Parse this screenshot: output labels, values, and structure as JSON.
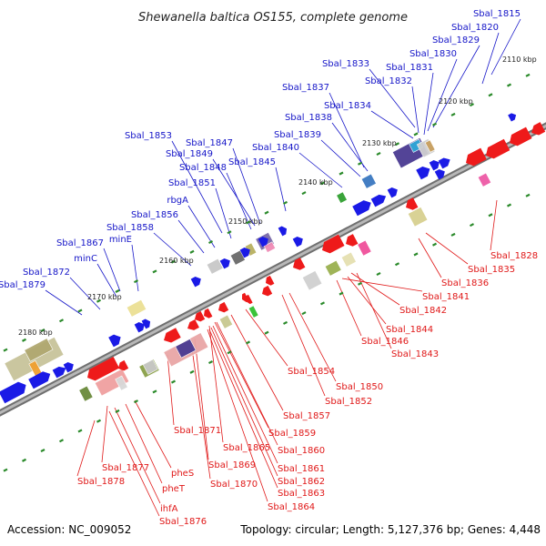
{
  "title": "Shewanella baltica OS155, complete genome",
  "footer": {
    "accession": "Accession: NC_009052",
    "summary": "Topology: circular; Length: 5,127,376 bp; Genes: 4,448"
  },
  "colors": {
    "forward_label": "#1515c8",
    "reverse_label": "#e01818",
    "backbone": "#8c8c8c",
    "ruler_dot": "#2a8a2a"
  },
  "ticks": [
    {
      "label": "2110 kbp",
      "kbp": 2110
    },
    {
      "label": "2120 kbp",
      "kbp": 2120
    },
    {
      "label": "2130 kbp",
      "kbp": 2130
    },
    {
      "label": "2140 kbp",
      "kbp": 2140
    },
    {
      "label": "2150 kbp",
      "kbp": 2150
    },
    {
      "label": "2160 kbp",
      "kbp": 2160
    },
    {
      "label": "2170 kbp",
      "kbp": 2170
    },
    {
      "label": "2180 kbp",
      "kbp": 2180
    }
  ],
  "forward_genes": [
    "Sbal_1815",
    "Sbal_1820",
    "Sbal_1829",
    "Sbal_1830",
    "Sbal_1831",
    "Sbal_1833",
    "Sbal_1832",
    "Sbal_1837",
    "Sbal_1834",
    "Sbal_1838",
    "Sbal_1839",
    "Sbal_1840",
    "Sbal_1853",
    "Sbal_1847",
    "Sbal_1849",
    "Sbal_1845",
    "Sbal_1848",
    "Sbal_1851",
    "rbgA",
    "Sbal_1856",
    "Sbal_1858",
    "minE",
    "Sbal_1867",
    "minC",
    "Sbal_1872",
    "Sbal_1879"
  ],
  "reverse_genes": [
    "Sbal_1828",
    "Sbal_1835",
    "Sbal_1836",
    "Sbal_1841",
    "Sbal_1842",
    "Sbal_1844",
    "Sbal_1846",
    "Sbal_1843",
    "Sbal_1854",
    "Sbal_1850",
    "Sbal_1852",
    "Sbal_1857",
    "Sbal_1871",
    "Sbal_1859",
    "Sbal_1865",
    "Sbal_1860",
    "Sbal_1869",
    "Sbal_1861",
    "Sbal_1862",
    "Sbal_1863",
    "Sbal_1870",
    "Sbal_1864",
    "Sbal_1878",
    "Sbal_1877",
    "pheS",
    "pheT",
    "ihfA",
    "Sbal_1876"
  ]
}
